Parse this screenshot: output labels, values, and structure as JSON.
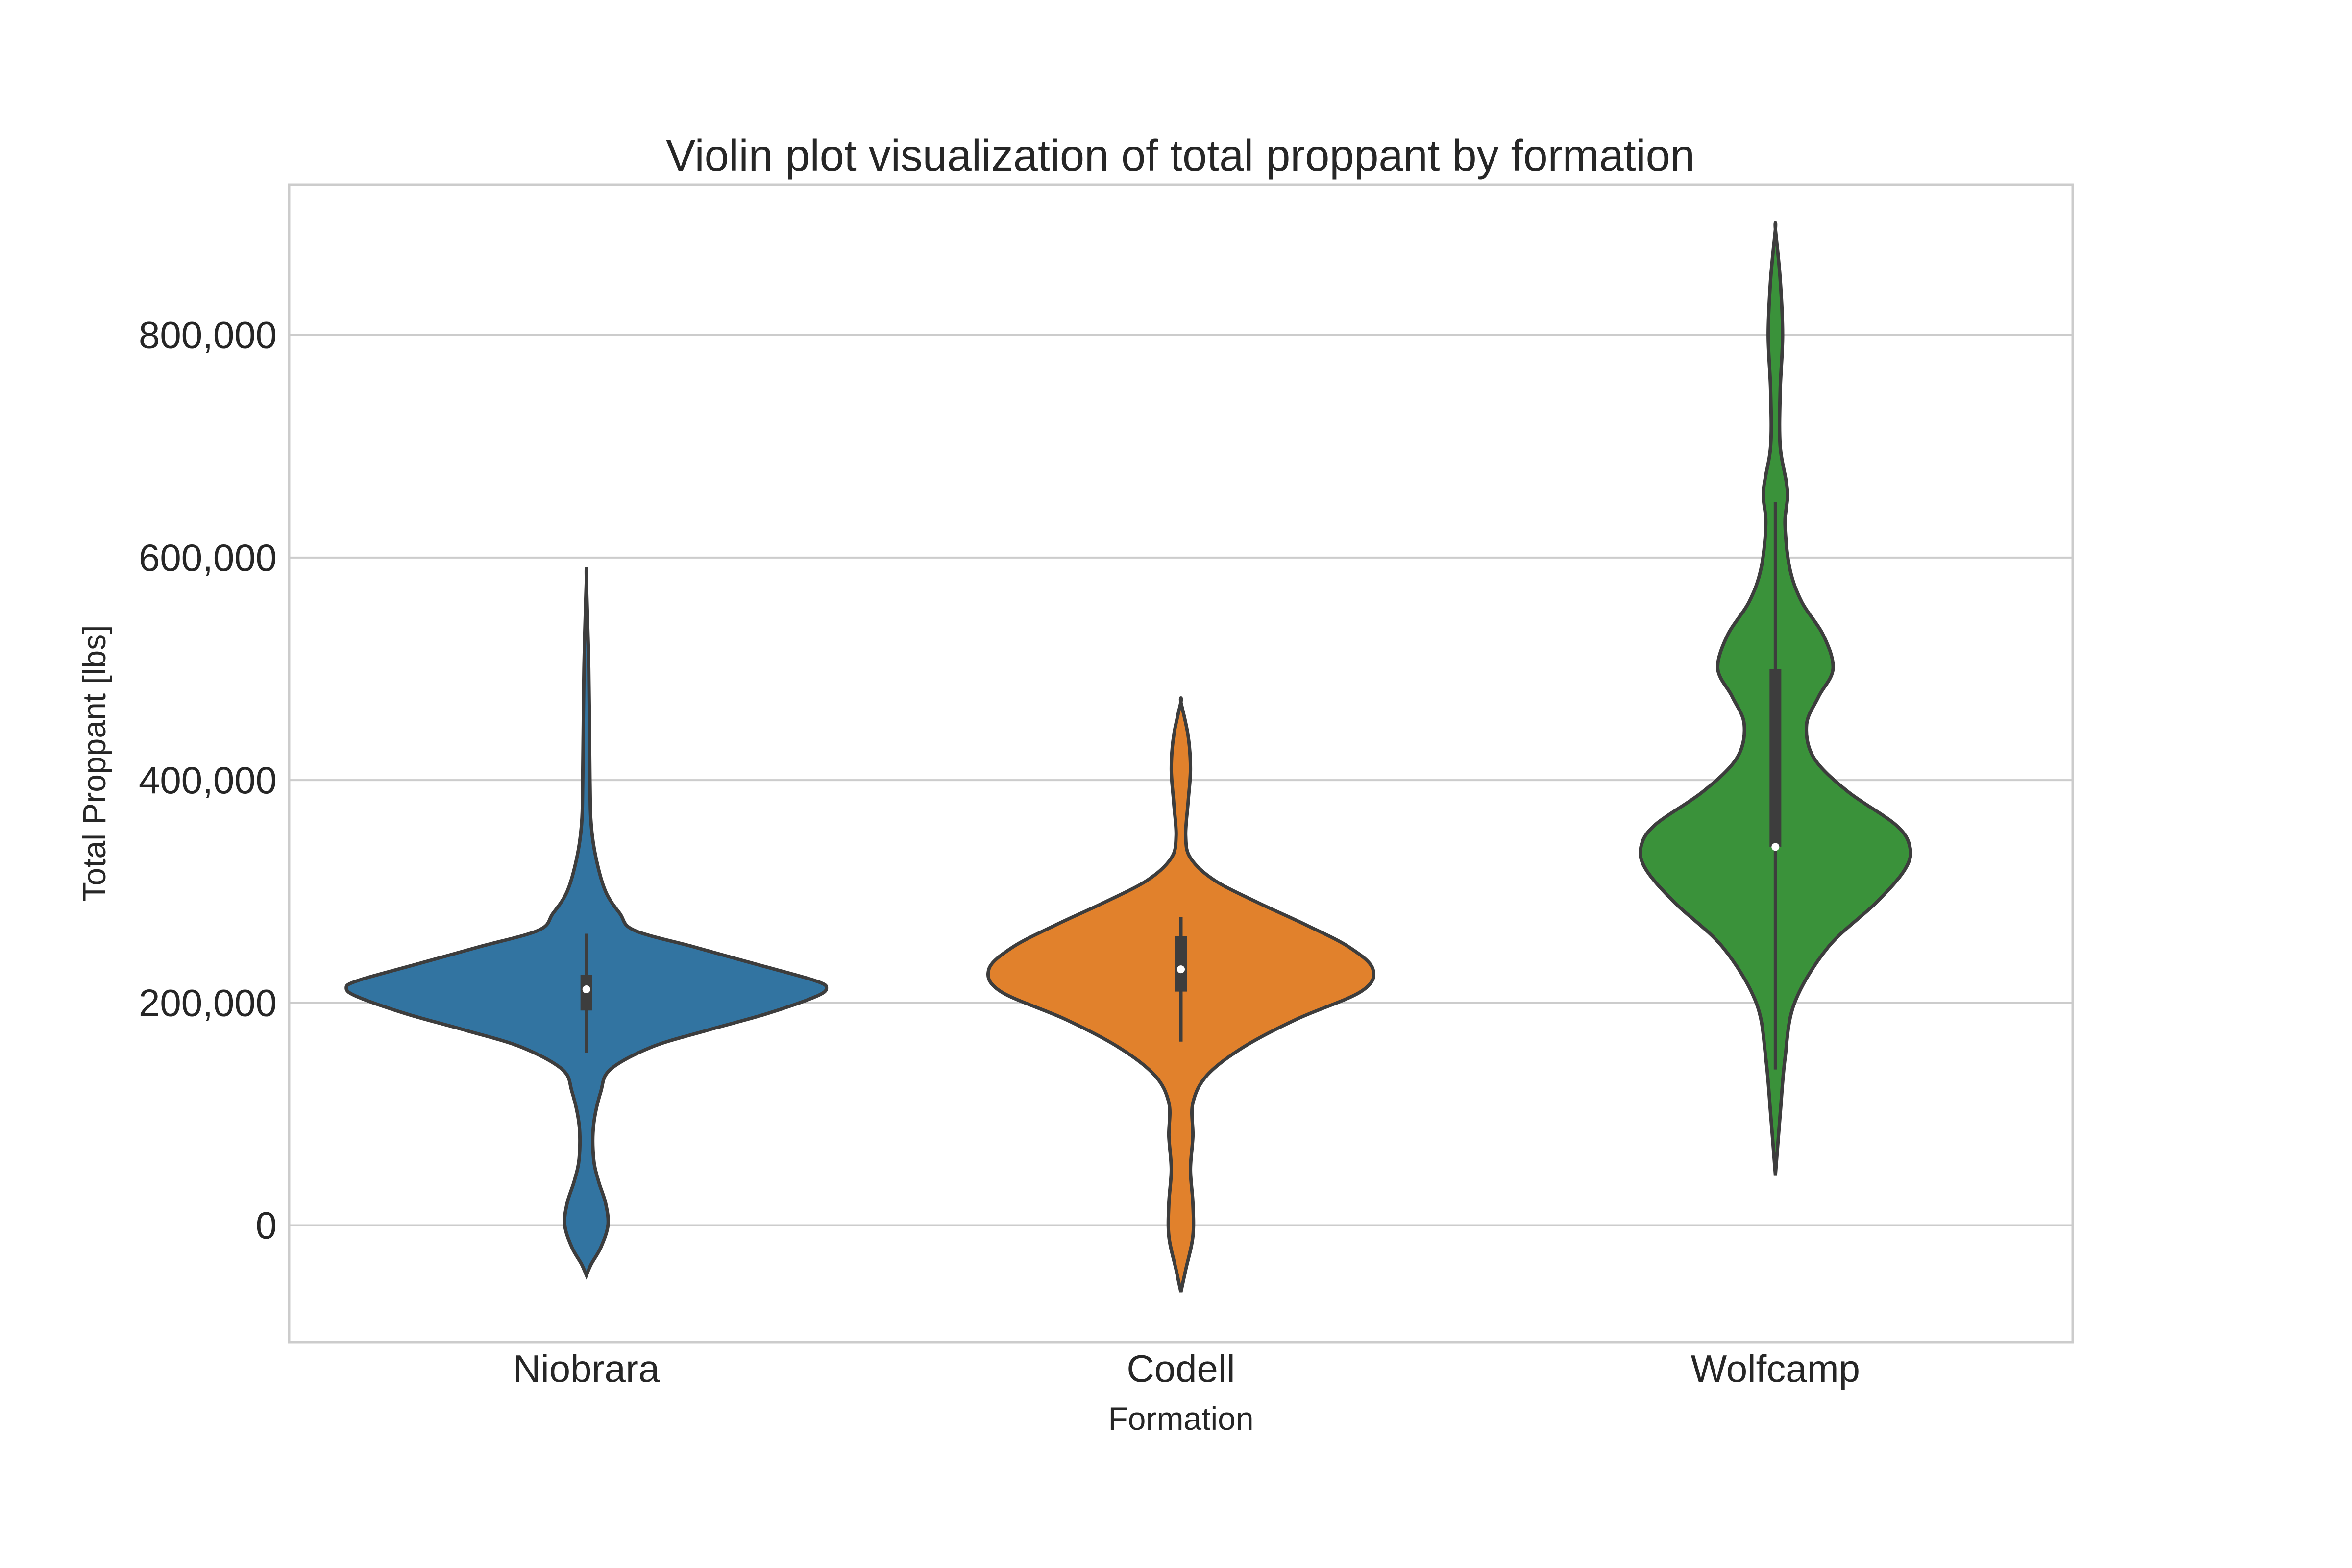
{
  "chart_data": {
    "type": "violin",
    "title": "Violin plot visualization of total proppant by formation",
    "xlabel": "Formation",
    "ylabel": "Total Proppant [lbs]",
    "ylim": [
      -105000,
      935000
    ],
    "yticks": [
      0,
      200000,
      400000,
      600000,
      800000
    ],
    "ytick_labels": [
      "0",
      "200,000",
      "400,000",
      "600,000",
      "800,000"
    ],
    "grid": true,
    "categories": [
      "Niobrara",
      "Codell",
      "Wolfcamp"
    ],
    "series": [
      {
        "category": "Niobrara",
        "color": "#3274a1",
        "range": [
          -45000,
          580000
        ],
        "whisker": [
          155000,
          262000
        ],
        "quartiles": [
          193000,
          225000
        ],
        "median": 212000,
        "density": [
          [
            -45000,
            0.0
          ],
          [
            -35000,
            0.02
          ],
          [
            -20000,
            0.06
          ],
          [
            0,
            0.09
          ],
          [
            20000,
            0.08
          ],
          [
            40000,
            0.05
          ],
          [
            60000,
            0.03
          ],
          [
            90000,
            0.03
          ],
          [
            120000,
            0.06
          ],
          [
            140000,
            0.1
          ],
          [
            160000,
            0.27
          ],
          [
            175000,
            0.5
          ],
          [
            190000,
            0.75
          ],
          [
            205000,
            0.95
          ],
          [
            213000,
            1.0
          ],
          [
            220000,
            0.95
          ],
          [
            235000,
            0.7
          ],
          [
            250000,
            0.45
          ],
          [
            265000,
            0.2
          ],
          [
            280000,
            0.14
          ],
          [
            300000,
            0.08
          ],
          [
            330000,
            0.04
          ],
          [
            360000,
            0.02
          ],
          [
            400000,
            0.015
          ],
          [
            500000,
            0.01
          ],
          [
            580000,
            0.0
          ]
        ]
      },
      {
        "category": "Codell",
        "color": "#e1812c",
        "range": [
          -60000,
          470000
        ],
        "whisker": [
          165000,
          277000
        ],
        "quartiles": [
          210000,
          260000
        ],
        "median": 230000,
        "density": [
          [
            -60000,
            0.0
          ],
          [
            -40000,
            0.02
          ],
          [
            -10000,
            0.05
          ],
          [
            20000,
            0.05
          ],
          [
            50000,
            0.04
          ],
          [
            80000,
            0.05
          ],
          [
            110000,
            0.05
          ],
          [
            135000,
            0.11
          ],
          [
            160000,
            0.26
          ],
          [
            185000,
            0.48
          ],
          [
            210000,
            0.75
          ],
          [
            230000,
            0.8
          ],
          [
            250000,
            0.7
          ],
          [
            270000,
            0.52
          ],
          [
            290000,
            0.32
          ],
          [
            310000,
            0.14
          ],
          [
            330000,
            0.04
          ],
          [
            350000,
            0.02
          ],
          [
            380000,
            0.03
          ],
          [
            410000,
            0.04
          ],
          [
            440000,
            0.03
          ],
          [
            470000,
            0.0
          ]
        ]
      },
      {
        "category": "Wolfcamp",
        "color": "#3a923a",
        "range": [
          45000,
          895000
        ],
        "whisker": [
          140000,
          650000
        ],
        "quartiles": [
          340000,
          500000
        ],
        "median": 340000,
        "density": [
          [
            45000,
            0.0
          ],
          [
            100000,
            0.02
          ],
          [
            150000,
            0.04
          ],
          [
            200000,
            0.08
          ],
          [
            250000,
            0.22
          ],
          [
            290000,
            0.42
          ],
          [
            320000,
            0.54
          ],
          [
            340000,
            0.56
          ],
          [
            360000,
            0.5
          ],
          [
            390000,
            0.3
          ],
          [
            420000,
            0.16
          ],
          [
            450000,
            0.13
          ],
          [
            475000,
            0.18
          ],
          [
            500000,
            0.24
          ],
          [
            530000,
            0.2
          ],
          [
            560000,
            0.11
          ],
          [
            590000,
            0.06
          ],
          [
            630000,
            0.04
          ],
          [
            660000,
            0.05
          ],
          [
            700000,
            0.02
          ],
          [
            750000,
            0.02
          ],
          [
            800000,
            0.03
          ],
          [
            850000,
            0.02
          ],
          [
            895000,
            0.0
          ]
        ]
      }
    ]
  }
}
